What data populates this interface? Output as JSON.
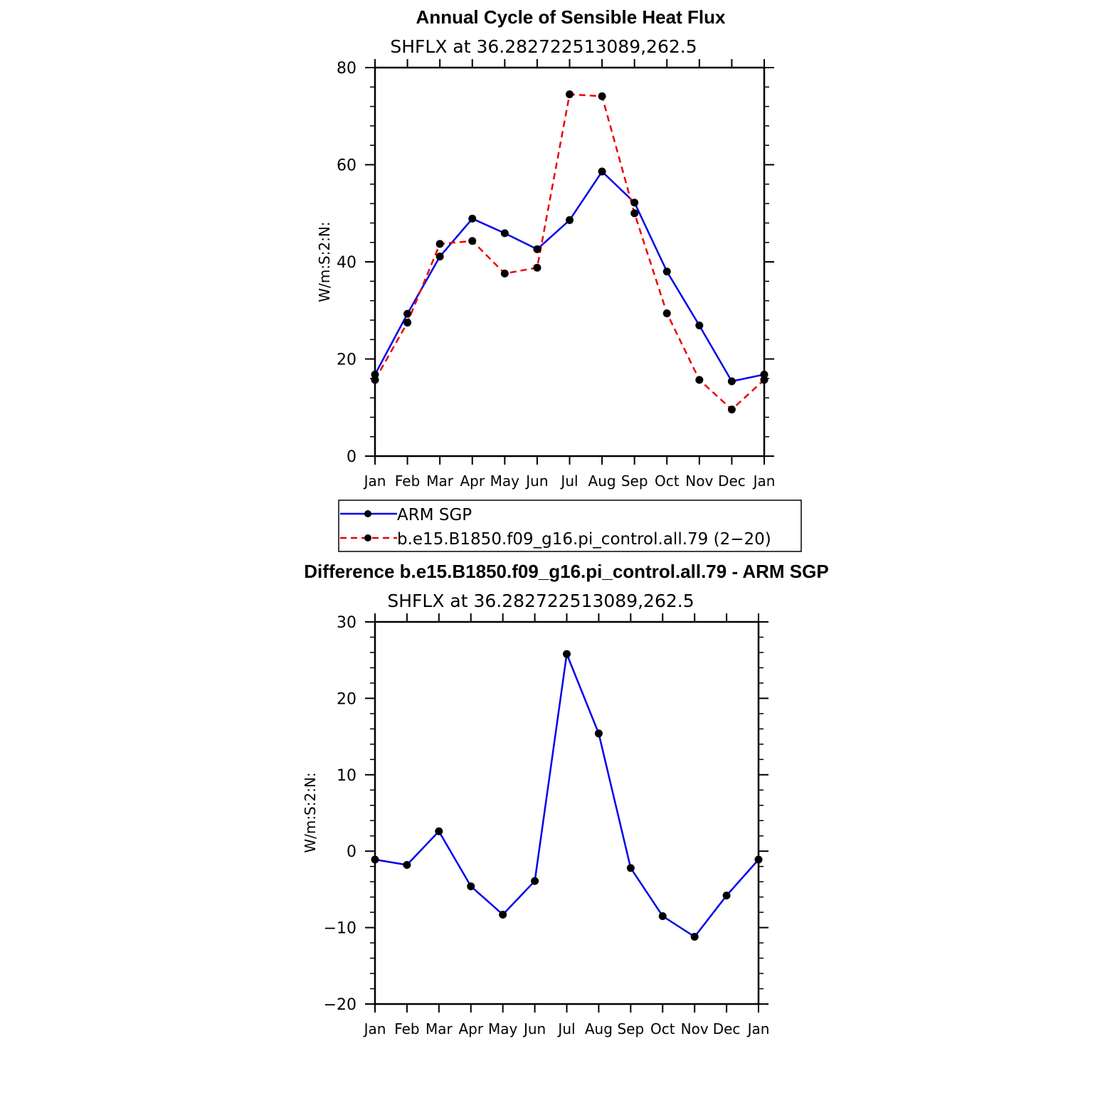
{
  "chart_data": [
    {
      "type": "line",
      "title": "Annual Cycle of Sensible Heat Flux",
      "subtitle": "SHFLX  at  36.282722513089,262.5",
      "ylabel": "W/m:S:2:N:",
      "xlabel": "",
      "categories": [
        "Jan",
        "Feb",
        "Mar",
        "Apr",
        "May",
        "Jun",
        "Jul",
        "Aug",
        "Sep",
        "Oct",
        "Nov",
        "Dec",
        "Jan"
      ],
      "ylim": [
        0,
        80
      ],
      "yticks": [
        "0",
        "20",
        "40",
        "60",
        "80"
      ],
      "series": [
        {
          "name": "ARM  SGP",
          "color": "#0000ee",
          "dash": "solid",
          "values": [
            16.8,
            29.3,
            41.1,
            48.9,
            45.9,
            42.6,
            48.6,
            58.6,
            52.2,
            38.0,
            26.9,
            15.4,
            16.8
          ]
        },
        {
          "name": "b.e15.B1850.f09_g16.pi_control.all.79 (2−20)",
          "color": "#ee0000",
          "dash": "dashed",
          "values": [
            15.7,
            27.5,
            43.7,
            44.3,
            37.6,
            38.8,
            74.5,
            74.1,
            50.0,
            29.4,
            15.7,
            9.6,
            15.7
          ]
        }
      ],
      "legend": "below"
    },
    {
      "type": "line",
      "title": "Difference b.e15.B1850.f09_g16.pi_control.all.79 - ARM SGP",
      "subtitle": "SHFLX  at  36.282722513089,262.5",
      "ylabel": "W/m:S:2:N:",
      "xlabel": "",
      "categories": [
        "Jan",
        "Feb",
        "Mar",
        "Apr",
        "May",
        "Jun",
        "Jul",
        "Aug",
        "Sep",
        "Oct",
        "Nov",
        "Dec",
        "Jan"
      ],
      "ylim": [
        -20,
        30
      ],
      "yticks": [
        "−20",
        "−10",
        "0",
        "10",
        "20",
        "30"
      ],
      "series": [
        {
          "color": "#0000ee",
          "dash": "solid",
          "values": [
            -1.1,
            -1.8,
            2.6,
            -4.6,
            -8.3,
            -3.9,
            25.8,
            15.4,
            -2.2,
            -8.5,
            -11.2,
            -5.8,
            -1.1
          ]
        }
      ]
    }
  ]
}
